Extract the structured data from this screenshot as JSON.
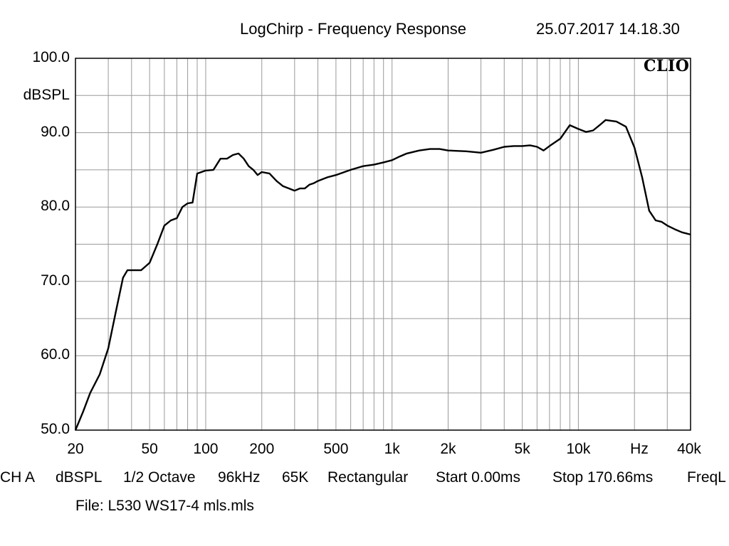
{
  "header": {
    "title": "LogChirp - Frequency Response",
    "timestamp": "25.07.2017 14.18.30"
  },
  "brand": "CLIO",
  "info_line": [
    "CH A",
    "dBSPL",
    "1/2 Octave",
    "96kHz",
    "65K",
    "Rectangular",
    "Start 0.00ms",
    "Stop 170.66ms",
    "FreqL"
  ],
  "file_line": "File: L530 WS17-4 mls.mls",
  "chart_data": {
    "type": "line",
    "title": "LogChirp - Frequency Response",
    "xlabel": "Hz",
    "ylabel": "dBSPL",
    "xscale": "log",
    "xlim": [
      20,
      40000
    ],
    "ylim": [
      50,
      100
    ],
    "grid": true,
    "x_ticks": [
      {
        "value": 20,
        "label": "20"
      },
      {
        "value": 50,
        "label": "50"
      },
      {
        "value": 100,
        "label": "100"
      },
      {
        "value": 200,
        "label": "200"
      },
      {
        "value": 500,
        "label": "500"
      },
      {
        "value": 1000,
        "label": "1k"
      },
      {
        "value": 2000,
        "label": "2k"
      },
      {
        "value": 5000,
        "label": "5k"
      },
      {
        "value": 10000,
        "label": "10k"
      },
      {
        "value": 40000,
        "label": "40k"
      }
    ],
    "y_ticks": [
      {
        "value": 100,
        "label": "100.0"
      },
      {
        "value": 90,
        "label": "90.0"
      },
      {
        "value": 80,
        "label": "80.0"
      },
      {
        "value": 70,
        "label": "70.0"
      },
      {
        "value": 60,
        "label": "60.0"
      },
      {
        "value": 50,
        "label": "50.0"
      }
    ],
    "series": [
      {
        "x": [
          20,
          22,
          24,
          27,
          30,
          33,
          36,
          38,
          40,
          45,
          50,
          55,
          60,
          65,
          70,
          75,
          80,
          85,
          90,
          100,
          110,
          120,
          130,
          140,
          150,
          160,
          170,
          180,
          190,
          200,
          220,
          240,
          260,
          280,
          300,
          320,
          340,
          360,
          380,
          400,
          450,
          500,
          600,
          700,
          800,
          900,
          1000,
          1100,
          1200,
          1400,
          1600,
          1800,
          2000,
          2500,
          3000,
          3500,
          4000,
          4500,
          5000,
          5500,
          6000,
          6500,
          7000,
          8000,
          9000,
          10000,
          11000,
          12000,
          13000,
          14000,
          15000,
          16000,
          18000,
          20000,
          22000,
          24000,
          26000,
          28000,
          30000,
          33000,
          36000,
          40000
        ],
        "y": [
          50.0,
          52.5,
          55.0,
          57.5,
          61.0,
          66.0,
          70.5,
          71.5,
          71.5,
          71.5,
          72.5,
          75.0,
          77.5,
          78.2,
          78.5,
          80.0,
          80.5,
          80.6,
          84.5,
          84.9,
          85.0,
          86.5,
          86.5,
          87.0,
          87.2,
          86.5,
          85.5,
          85.0,
          84.3,
          84.7,
          84.5,
          83.5,
          82.8,
          82.5,
          82.2,
          82.5,
          82.5,
          83.0,
          83.2,
          83.5,
          84.0,
          84.3,
          85.0,
          85.5,
          85.7,
          86.0,
          86.3,
          86.8,
          87.2,
          87.6,
          87.8,
          87.8,
          87.6,
          87.5,
          87.3,
          87.7,
          88.1,
          88.2,
          88.2,
          88.3,
          88.1,
          87.6,
          88.2,
          89.2,
          91.0,
          90.5,
          90.1,
          90.3,
          91.0,
          91.7,
          91.6,
          91.5,
          90.8,
          88.0,
          84.0,
          79.5,
          78.2,
          78.0,
          77.5,
          77.0,
          76.6,
          76.3
        ]
      }
    ]
  }
}
